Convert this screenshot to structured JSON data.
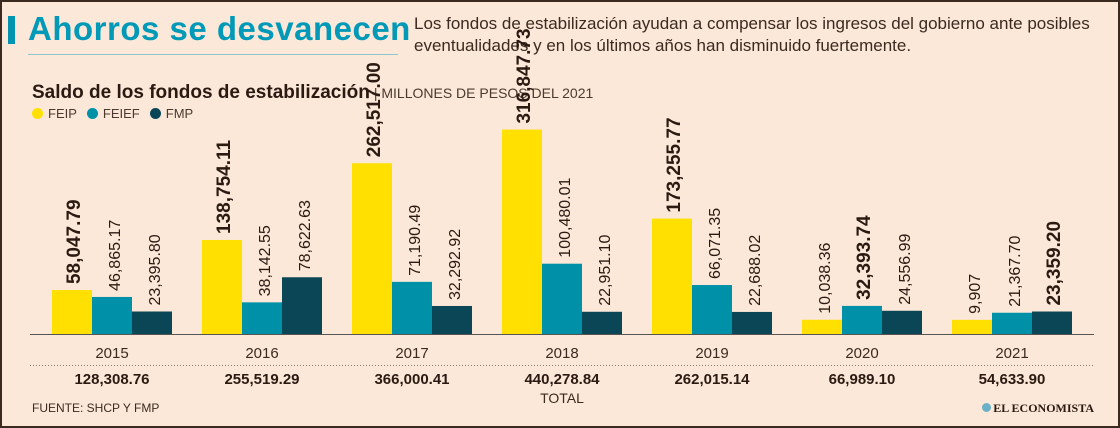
{
  "header": {
    "title": "Ahorros se desvanecen",
    "subtitle": "Los fondos de estabilización ayudan a compensar los ingresos del gobierno ante posibles eventualidades y en los últimos años han disminuido fuertemente."
  },
  "chart_data": {
    "type": "bar",
    "title": "Saldo de los fondos de estabilización",
    "units": "| MILLONES DE PESOS DEL 2021",
    "categories": [
      "2015",
      "2016",
      "2017",
      "2018",
      "2019",
      "2020",
      "2021"
    ],
    "series": [
      {
        "name": "FEIP",
        "color": "#ffe000",
        "values": [
          58047.79,
          138754.11,
          262517.0,
          316847.73,
          173255.77,
          10038.36,
          9907
        ],
        "labels": [
          "58,047.79",
          "138,754.11",
          "262,517.00",
          "316,847.73",
          "173,255.77",
          "10,038.36",
          "9,907"
        ]
      },
      {
        "name": "FEIEF",
        "color": "#0090a8",
        "values": [
          46865.17,
          38142.55,
          71190.49,
          100480.01,
          66071.35,
          32393.74,
          21367.7
        ],
        "labels": [
          "46,865.17",
          "38,142.55",
          "71,190.49",
          "100,480.01",
          "66,071.35",
          "32,393.74",
          "21,367.70"
        ]
      },
      {
        "name": "FMP",
        "color": "#0b4656",
        "values": [
          23395.8,
          78622.63,
          32292.92,
          22951.1,
          22688.02,
          24556.99,
          23359.2
        ],
        "labels": [
          "23,395.80",
          "78,622.63",
          "32,292.92",
          "22,951.10",
          "22,688.02",
          "24,556.99",
          "23,359.20"
        ]
      }
    ],
    "totals": [
      "128,308.76",
      "255,519.29",
      "366,000.41",
      "440,278.84",
      "262,015.14",
      "66,989.10",
      "54,633.90"
    ],
    "totals_label": "TOTAL",
    "legend": "top-left"
  },
  "footer": {
    "source": "FUENTE: SHCP Y FMP",
    "logo": "EL ECONOMISTA"
  }
}
